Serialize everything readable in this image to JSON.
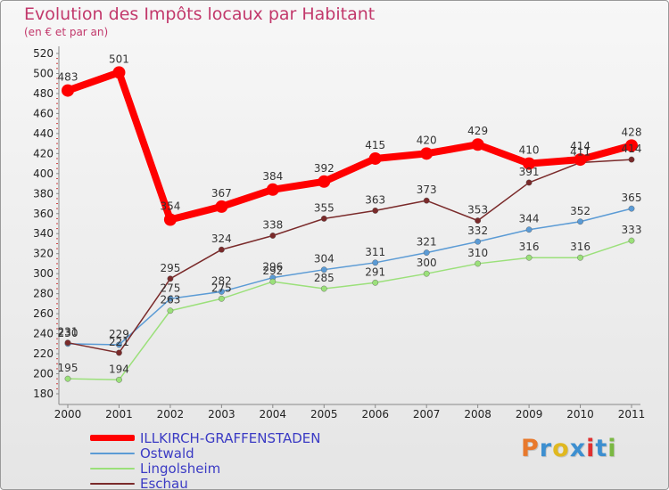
{
  "title": "Evolution des Impôts locaux par Habitant",
  "subtitle": "(en € et par an)",
  "logo": {
    "text": "Proxiti",
    "colors": [
      "#e8792c",
      "#3d8fd0",
      "#e0b820",
      "#3d8fd0",
      "#e03030",
      "#3d8fd0",
      "#7ab842"
    ]
  },
  "chart_data": {
    "type": "line",
    "title": "Evolution des Impôts locaux par Habitant",
    "subtitle": "(en € et par an)",
    "x": [
      "2000",
      "2001",
      "2002",
      "2003",
      "2004",
      "2005",
      "2006",
      "2007",
      "2008",
      "2009",
      "2010",
      "2011"
    ],
    "ylim": [
      180,
      520
    ],
    "yticks": [
      180,
      200,
      220,
      240,
      260,
      280,
      300,
      320,
      340,
      360,
      380,
      400,
      420,
      440,
      460,
      480,
      500,
      520
    ],
    "grid": false,
    "legend_position": "bottom-left",
    "series": [
      {
        "name": "ILLKIRCH-GRAFFENSTADEN",
        "color": "#ff0000",
        "width": 8,
        "values": [
          483,
          501,
          354,
          367,
          384,
          392,
          415,
          420,
          429,
          410,
          414,
          428
        ]
      },
      {
        "name": "Ostwald",
        "color": "#5b9bd5",
        "width": 1.5,
        "values": [
          230,
          229,
          275,
          282,
          296,
          304,
          311,
          321,
          332,
          344,
          352,
          365
        ]
      },
      {
        "name": "Lingolsheim",
        "color": "#9be07a",
        "width": 1.5,
        "values": [
          195,
          194,
          263,
          275,
          292,
          285,
          291,
          300,
          310,
          316,
          316,
          333
        ]
      },
      {
        "name": "Eschau",
        "color": "#7a2a2a",
        "width": 1.5,
        "values": [
          231,
          221,
          295,
          324,
          338,
          355,
          363,
          373,
          353,
          391,
          411,
          414
        ]
      }
    ]
  }
}
